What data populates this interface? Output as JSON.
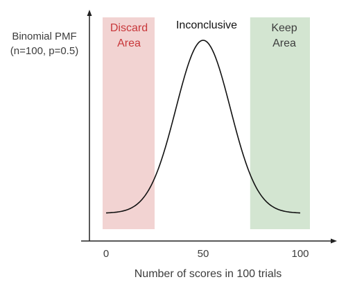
{
  "chart_data": {
    "type": "line",
    "ylabel": [
      "Binomial PMF",
      "(n=100, p=0.5)"
    ],
    "xlabel": "Number of scores in 100 trials",
    "xticks": [
      0,
      50,
      100
    ],
    "xlim": [
      0,
      100
    ],
    "series": [
      {
        "distribution": "binomial",
        "n": 100,
        "p": 0.5
      }
    ],
    "regions": [
      {
        "label_lines": [
          "Discard",
          "Area"
        ],
        "x_range": [
          0,
          25
        ],
        "color": "#f2d3d2",
        "text_color": "#c8373a"
      },
      {
        "label_lines": [
          "Keep",
          "Area"
        ],
        "x_range": [
          76,
          100
        ],
        "color": "#d3e5d1",
        "text_color": "#3d3d3d"
      }
    ],
    "annotation": "Inconclusive",
    "line_color": "#111111"
  }
}
